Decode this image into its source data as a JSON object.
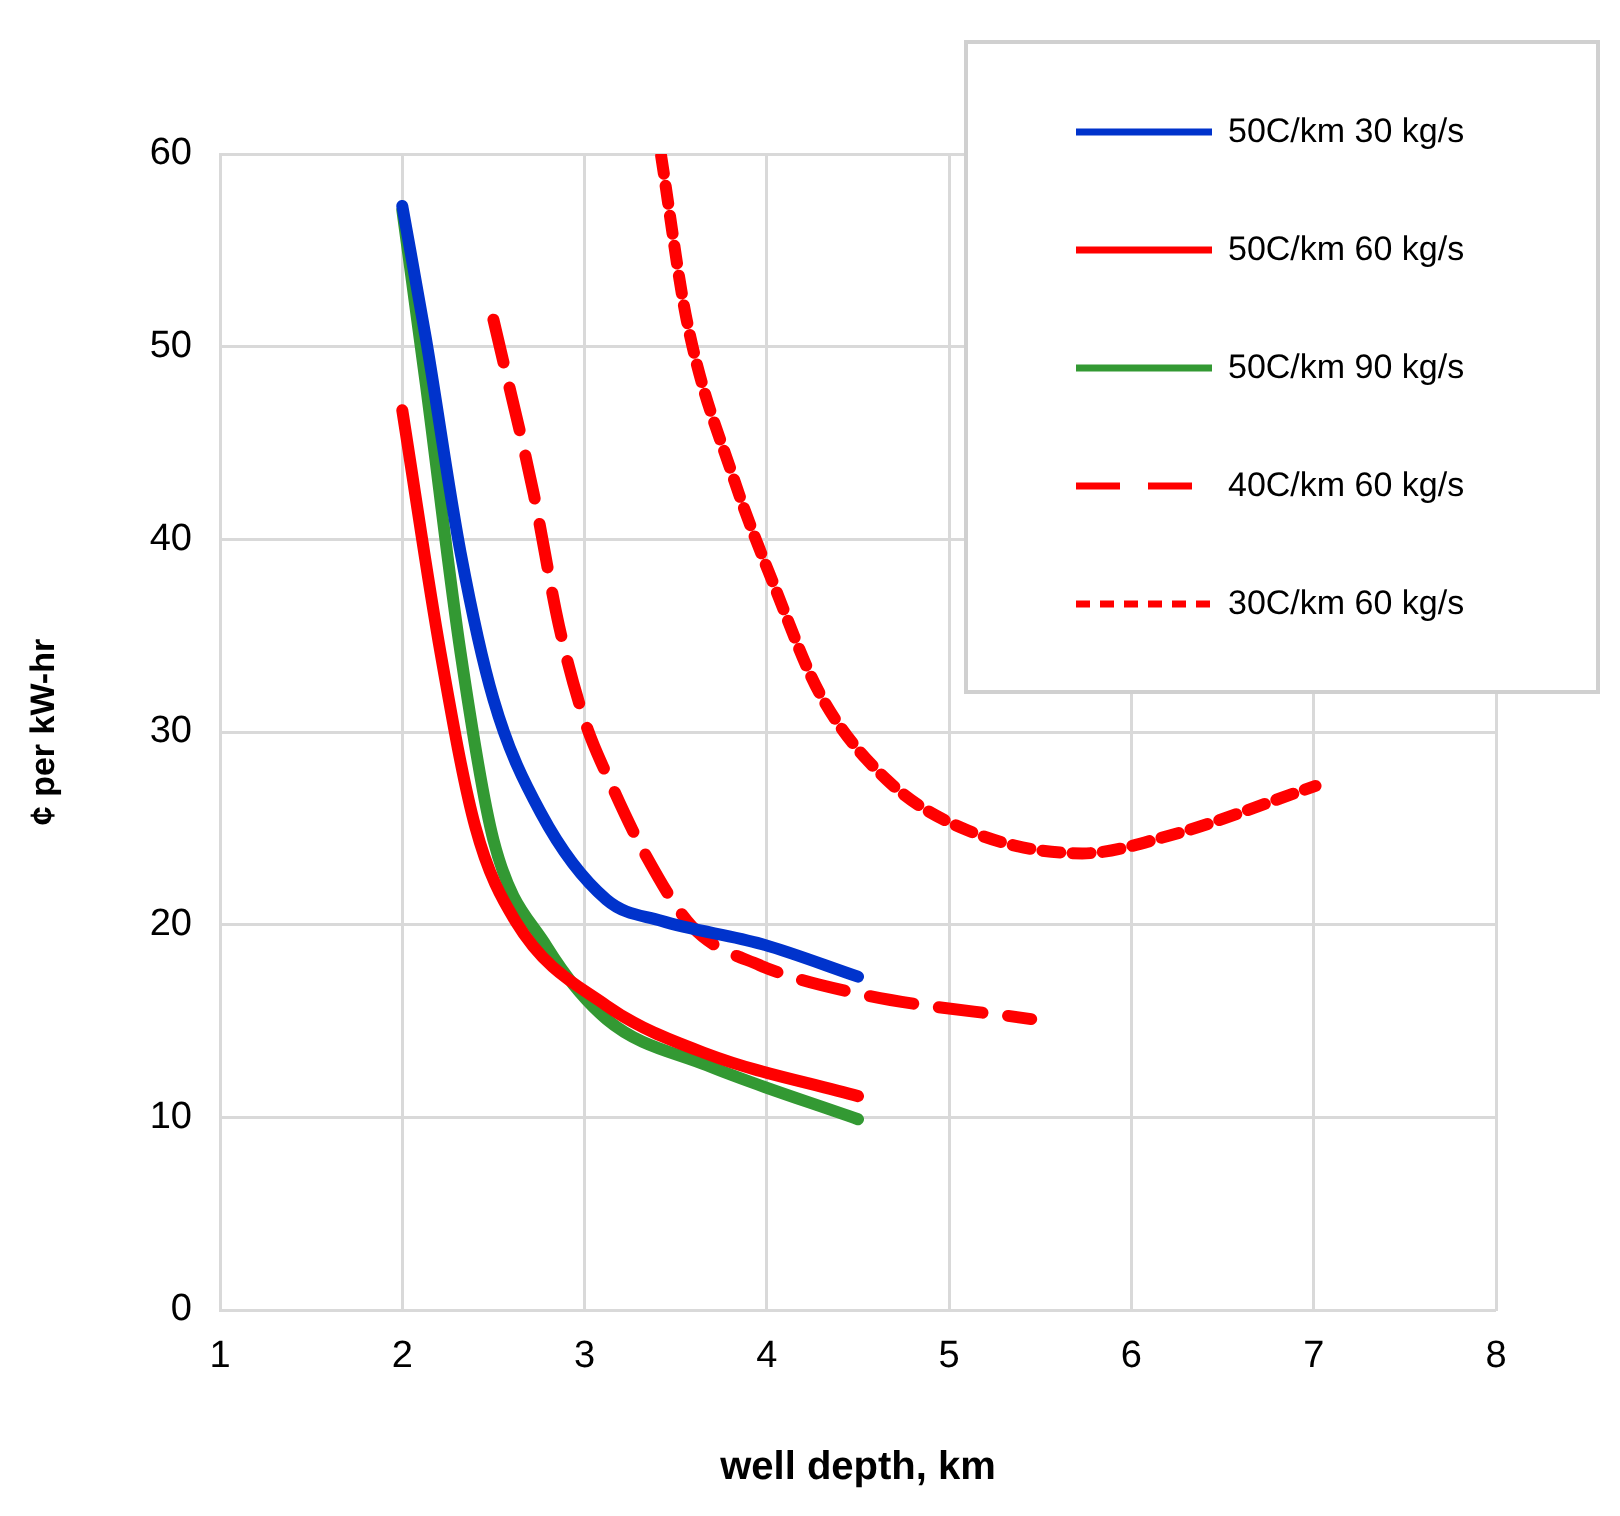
{
  "chart_data": {
    "type": "line",
    "xlabel": "well depth, km",
    "ylabel": "¢ per kW-hr",
    "xlim": [
      1,
      8
    ],
    "xticks": [
      1,
      2,
      3,
      4,
      5,
      6,
      7,
      8
    ],
    "ylim": [
      0,
      60
    ],
    "yticks": [
      0,
      10,
      20,
      30,
      40,
      50,
      60
    ],
    "grid": true,
    "legend": "top right",
    "marker": "none",
    "series": [
      {
        "name": "50C/km 30 kg/s",
        "color": "#0033cc",
        "line_style": "solid",
        "x": [
          2.0,
          2.13,
          2.32,
          2.5,
          2.76,
          3.12,
          3.42,
          3.97,
          4.5
        ],
        "values": [
          57.3,
          50.4,
          39.3,
          31.7,
          25.8,
          21.3,
          20.2,
          19.0,
          17.3
        ]
      },
      {
        "name": "50C/km 60 kg/s",
        "color": "#ff0000",
        "line_style": "solid",
        "x": [
          2.0,
          2.21,
          2.4,
          2.62,
          3.12,
          3.67,
          4.5
        ],
        "values": [
          46.7,
          34.1,
          25.1,
          20.2,
          15.8,
          13.3,
          11.1
        ]
      },
      {
        "name": "50C/km 90 kg/s",
        "color": "#339933",
        "line_style": "solid",
        "x": [
          2.0,
          2.13,
          2.32,
          2.5,
          2.79,
          3.12,
          3.67,
          4.5
        ],
        "values": [
          57.1,
          48.0,
          34.1,
          24.4,
          18.9,
          15.1,
          12.7,
          9.9
        ]
      },
      {
        "name": "40C/km 60 kg/s",
        "color": "#ff0000",
        "line_style": "dashed",
        "x": [
          2.5,
          2.72,
          2.86,
          3.0,
          3.15,
          3.33,
          3.59,
          3.96,
          4.51,
          5.45
        ],
        "values": [
          51.4,
          42.4,
          35.5,
          30.6,
          27.2,
          23.7,
          19.9,
          17.9,
          16.4,
          15.1
        ]
      },
      {
        "name": "30C/km 60 kg/s",
        "color": "#ff0000",
        "line_style": "dotted",
        "x": [
          3.42,
          3.56,
          3.82,
          4.04,
          4.29,
          4.66,
          5.1,
          5.73,
          6.2,
          7.01
        ],
        "values": [
          59.9,
          51.4,
          43.1,
          37.6,
          32.0,
          27.5,
          24.9,
          23.7,
          24.6,
          27.2
        ]
      }
    ]
  }
}
